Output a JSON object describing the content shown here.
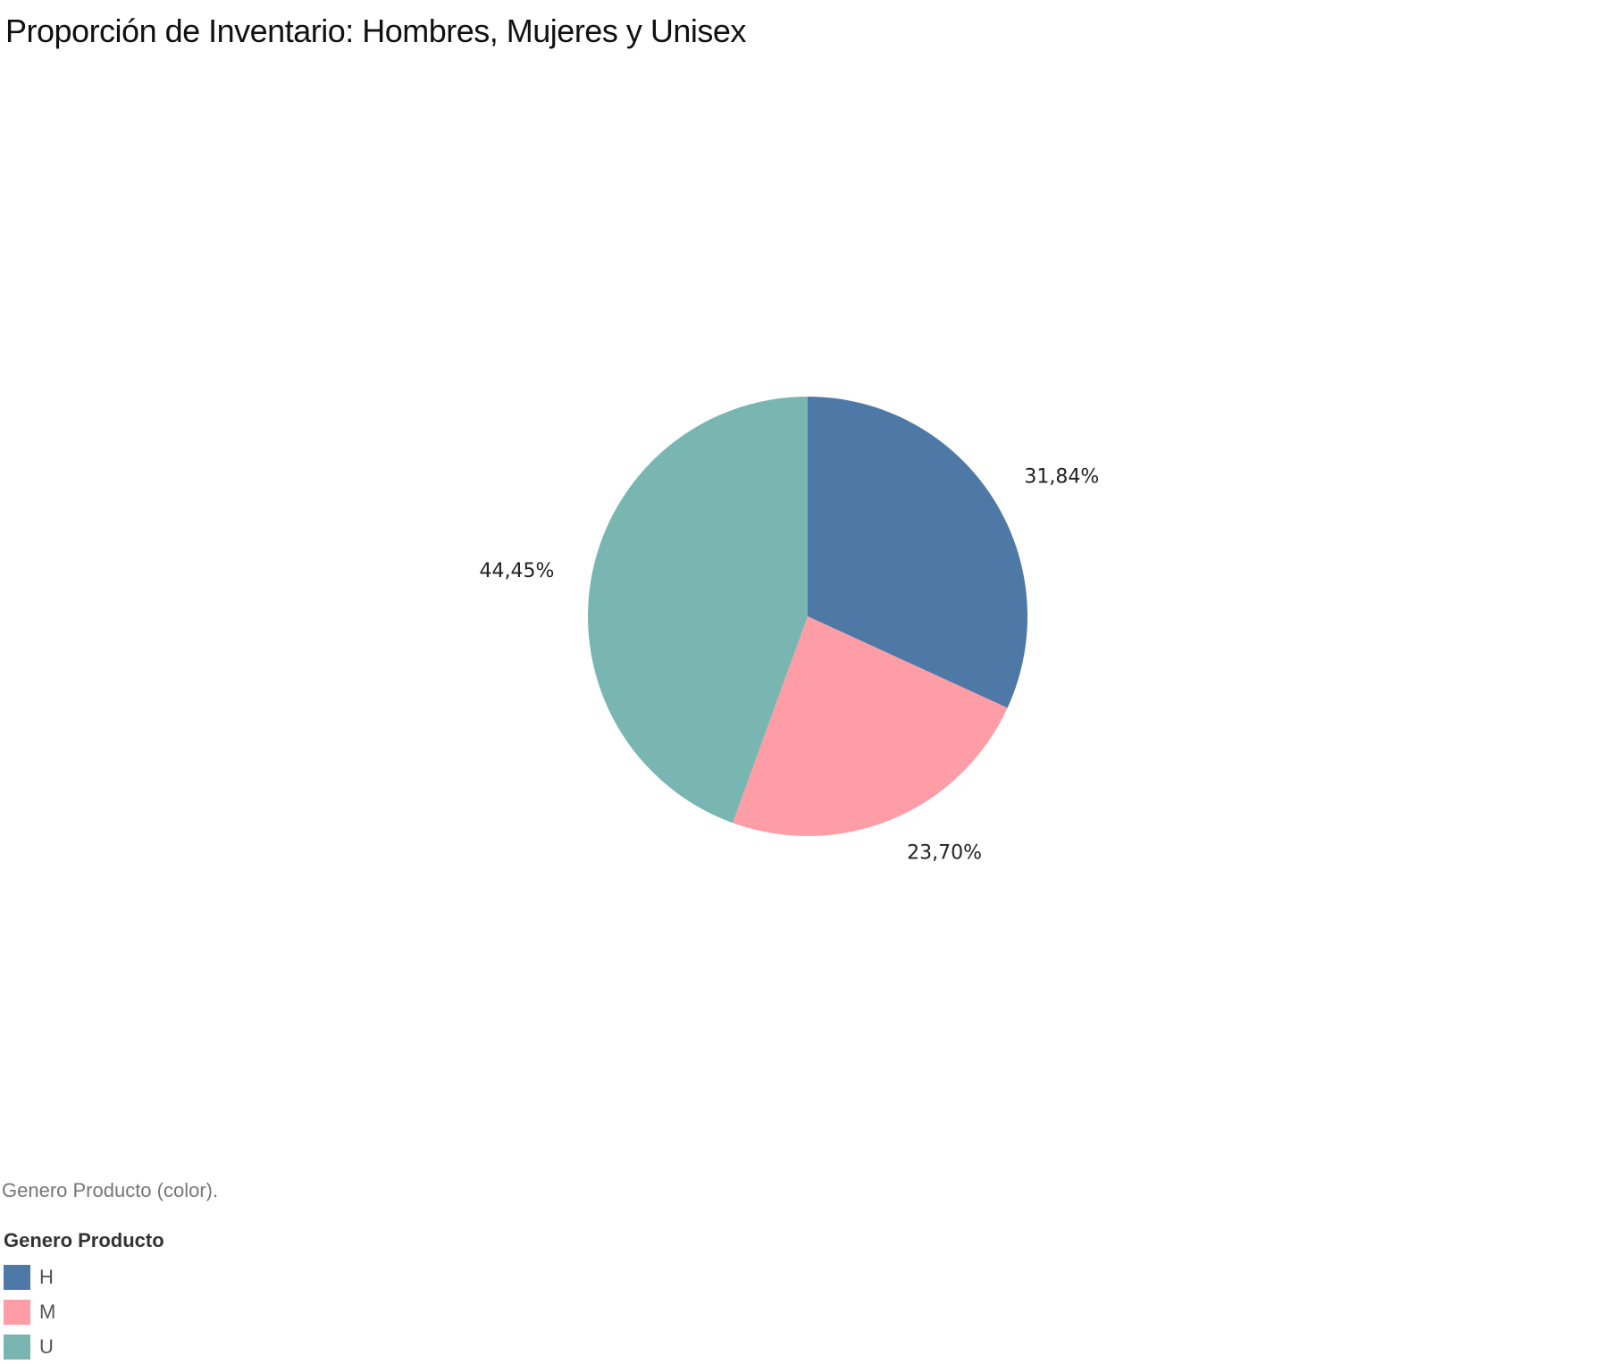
{
  "chart_data": {
    "type": "pie",
    "title": "Proporción de Inventario: Hombres, Mujeres y Unisex",
    "caption": "Genero Producto (color).",
    "legend_title": "Genero Producto",
    "legend_position": "bottom-left",
    "slices": [
      {
        "category": "H",
        "value": 31.84,
        "label": "31,84%",
        "color": "#4e79a7"
      },
      {
        "category": "M",
        "value": 23.7,
        "label": "23,70%",
        "color": "#ff9da7"
      },
      {
        "category": "U",
        "value": 44.45,
        "label": "44,45%",
        "color": "#79b6b1"
      }
    ]
  }
}
